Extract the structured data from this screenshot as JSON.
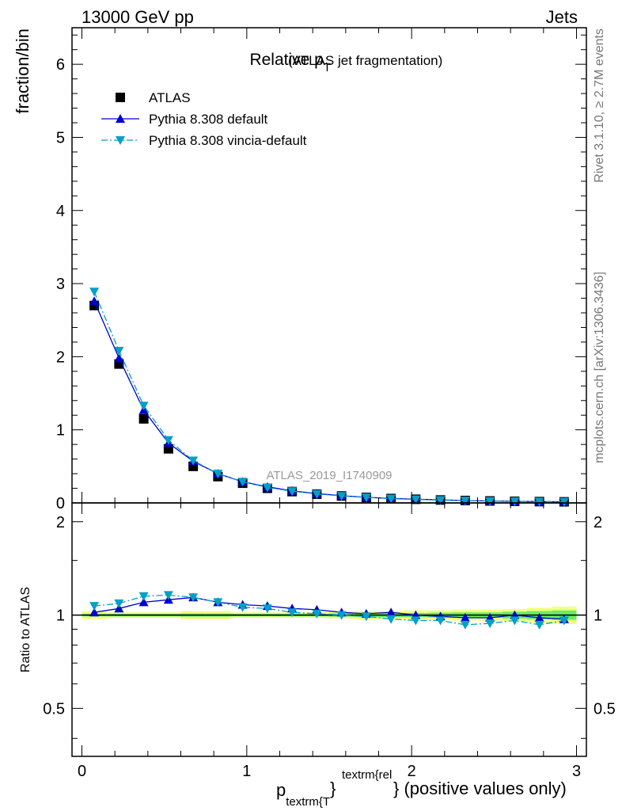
{
  "header": {
    "left": "13000 GeV pp",
    "right": "Jets"
  },
  "side_labels": {
    "top": "Rivet 3.1.10, ≥ 2.7M events",
    "bottom": "mcplots.cern.ch [arXiv:1306.3436]"
  },
  "chart_data": [
    {
      "type": "scatter",
      "title": "Relative p",
      "title_sub": "T",
      "title_suffix": "(ATLAS jet fragmentation)",
      "ylabel": "fraction/bin",
      "ylim": [
        0,
        6.5
      ],
      "yticks": [
        "0",
        "1",
        "2",
        "3",
        "4",
        "5",
        "6"
      ],
      "analysis_label": "ATLAS_2019_I1740909",
      "legend_position": "top-left",
      "x": [
        0.075,
        0.225,
        0.375,
        0.525,
        0.675,
        0.825,
        0.975,
        1.125,
        1.275,
        1.425,
        1.575,
        1.725,
        1.875,
        2.025,
        2.175,
        2.325,
        2.475,
        2.625,
        2.775,
        2.925
      ],
      "series": [
        {
          "name": "ATLAS",
          "marker": "square",
          "color": "#000000",
          "values": [
            2.7,
            1.9,
            1.15,
            0.74,
            0.5,
            0.36,
            0.27,
            0.2,
            0.155,
            0.12,
            0.095,
            0.075,
            0.06,
            0.05,
            0.04,
            0.033,
            0.027,
            0.022,
            0.018,
            0.015
          ]
        },
        {
          "name": "Pythia 8.308 default",
          "marker": "triangle-up",
          "color": "#0000cc",
          "line": "solid",
          "values": [
            2.76,
            1.98,
            1.27,
            0.82,
            0.57,
            0.4,
            0.29,
            0.22,
            0.165,
            0.128,
            0.099,
            0.077,
            0.062,
            0.051,
            0.041,
            0.033,
            0.027,
            0.022,
            0.018,
            0.015
          ]
        },
        {
          "name": "Pythia 8.308 vincia-default",
          "marker": "triangle-down",
          "color": "#00a0c8",
          "line": "dashdot",
          "values": [
            2.89,
            2.08,
            1.33,
            0.86,
            0.58,
            0.4,
            0.29,
            0.21,
            0.16,
            0.122,
            0.095,
            0.075,
            0.058,
            0.048,
            0.038,
            0.031,
            0.025,
            0.021,
            0.017,
            0.0145
          ]
        }
      ]
    },
    {
      "type": "scatter",
      "ylabel": "Ratio to ATLAS",
      "xlabel_main": "p",
      "xlabel_sub": "textrm{T",
      "xlabel_sup": "textrm{rel",
      "xlabel_brace": "}",
      "xlabel_suffix": "} (positive values only)",
      "xlim": [
        -0.06,
        3.06
      ],
      "ylim": [
        0.35,
        2.3
      ],
      "xticks": [
        "0",
        "1",
        "2",
        "3"
      ],
      "yticks": [
        "0.5",
        "1",
        "2"
      ],
      "reference_line": 1,
      "x": [
        0.075,
        0.225,
        0.375,
        0.525,
        0.675,
        0.825,
        0.975,
        1.125,
        1.275,
        1.425,
        1.575,
        1.725,
        1.875,
        2.025,
        2.175,
        2.325,
        2.475,
        2.625,
        2.775,
        2.925
      ],
      "uncertainty_band": {
        "inner_color": "#66ee66",
        "outer_color": "#f2ff80",
        "inner": [
          0.01,
          0.01,
          0.01,
          0.01,
          0.012,
          0.012,
          0.01,
          0.01,
          0.01,
          0.01,
          0.012,
          0.015,
          0.015,
          0.015,
          0.018,
          0.02,
          0.02,
          0.025,
          0.03,
          0.035
        ],
        "outer": [
          0.03,
          0.02,
          0.02,
          0.02,
          0.03,
          0.03,
          0.02,
          0.02,
          0.02,
          0.02,
          0.025,
          0.03,
          0.03,
          0.035,
          0.035,
          0.04,
          0.04,
          0.045,
          0.055,
          0.065
        ]
      },
      "series": [
        {
          "name": "Pythia 8.308 default",
          "marker": "triangle-up",
          "color": "#0000cc",
          "line": "solid",
          "values": [
            1.02,
            1.05,
            1.1,
            1.12,
            1.14,
            1.1,
            1.08,
            1.07,
            1.05,
            1.04,
            1.02,
            1.01,
            1.02,
            1.0,
            0.99,
            0.98,
            0.98,
            1.0,
            0.98,
            0.97
          ]
        },
        {
          "name": "Pythia 8.308 vincia-default",
          "marker": "triangle-down",
          "color": "#00a0c8",
          "line": "dashdot",
          "values": [
            1.07,
            1.09,
            1.15,
            1.16,
            1.14,
            1.1,
            1.06,
            1.05,
            1.02,
            1.01,
            1.0,
            0.99,
            0.97,
            0.96,
            0.96,
            0.93,
            0.94,
            0.96,
            0.93,
            0.96
          ]
        }
      ]
    }
  ]
}
